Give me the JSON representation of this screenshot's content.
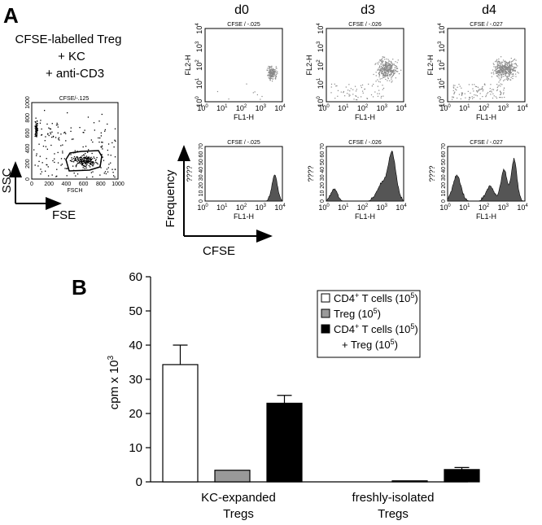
{
  "panel_a": {
    "letter": "A",
    "setup": {
      "line1": "CFSE-labelled Treg",
      "line2": "+ KC",
      "line3": "+ anti-CD3"
    },
    "gate_plot": {
      "title": "CFSE/-.125",
      "xlabel": "FSCH",
      "xticks": [
        "0",
        "200",
        "400",
        "600",
        "800",
        "1000"
      ],
      "yticks": [
        "0",
        "200",
        "400",
        "600",
        "800",
        "1000"
      ],
      "axis_y": "SSC",
      "axis_x": "FSE"
    },
    "days": [
      "d0",
      "d3",
      "d4"
    ],
    "dot_titles": [
      "CFSE / -.025",
      "CFSE / -.026",
      "CFSE / -.027"
    ],
    "dot_ylabel": "FL2-H",
    "dot_xlabel": "FL1-H",
    "hist_titles": [
      "CFSE / -.025",
      "CFSE / -.026",
      "CFSE / -.027"
    ],
    "hist_xlabel": "FL1-H",
    "hist_ylabel": "????",
    "hist_yticks": [
      "0",
      "10",
      "20",
      "30",
      "40",
      "50",
      "60",
      "70"
    ],
    "hist_axis_y": "Frequency",
    "hist_axis_x": "CFSE"
  },
  "panel_b": {
    "letter": "B",
    "chart_data": {
      "type": "bar",
      "ylabel": "cpm x 10",
      "ylabel_sup": "3",
      "ylim": [
        0,
        60
      ],
      "yticks": [
        0,
        10,
        20,
        30,
        40,
        50,
        60
      ],
      "groups": [
        {
          "label_line1": "KC-expanded",
          "label_line2": "Tregs"
        },
        {
          "label_line1": "freshly-isolated",
          "label_line2": "Tregs"
        }
      ],
      "series": [
        {
          "name": "CD4+ T cells (10^5)",
          "color": "#ffffff",
          "values": [
            34.3,
            null
          ],
          "errors": [
            5.7,
            null
          ]
        },
        {
          "name": "Treg (10^5)",
          "color": "#999999",
          "values": [
            3.4,
            0.3
          ],
          "errors": [
            0,
            0
          ]
        },
        {
          "name": "CD4+ T cells (10^5) + Treg (10^5)",
          "color": "#000000",
          "values": [
            23.0,
            3.6
          ],
          "errors": [
            2.3,
            0.6
          ]
        }
      ]
    },
    "legend": {
      "entry1": {
        "text": "CD4",
        "sup1": "+",
        "mid": " T cells (10",
        "sup2": "5",
        "end": ")"
      },
      "entry2": {
        "text": "Treg (10",
        "sup": "5",
        "end": ")"
      },
      "entry3a": {
        "text": "CD4",
        "sup1": "+",
        "mid": " T cells (10",
        "sup2": "5",
        "end": ")"
      },
      "entry3b": {
        "text": "+ Treg (10",
        "sup": "5",
        "end": ")"
      }
    }
  }
}
